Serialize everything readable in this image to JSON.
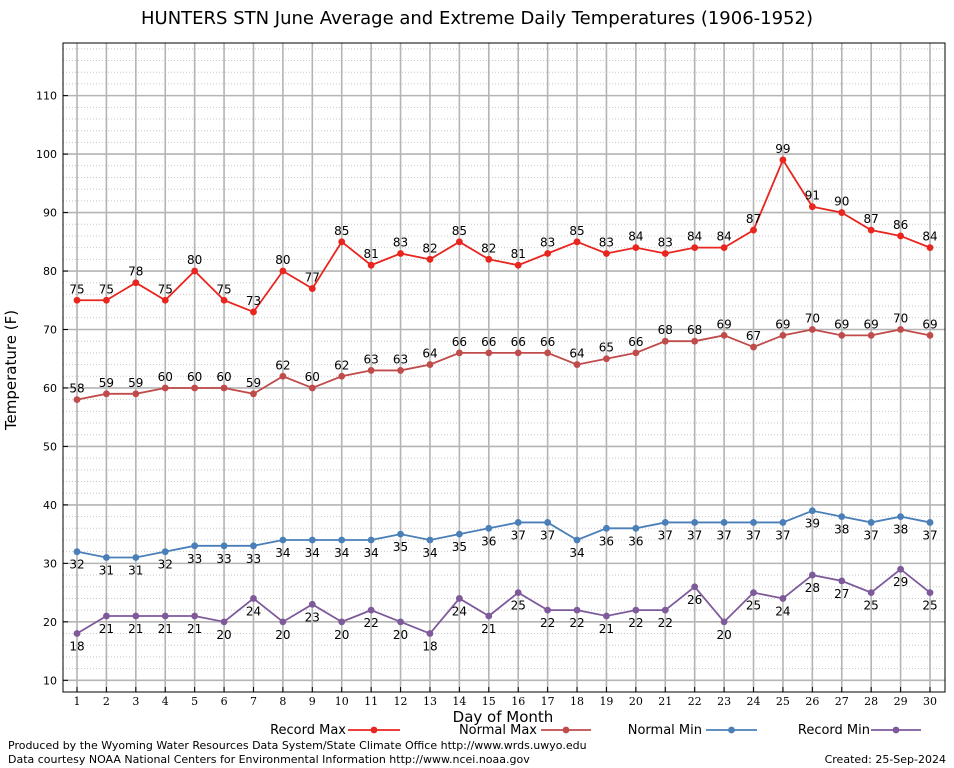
{
  "chart_data": {
    "type": "line",
    "title": "HUNTERS STN June Average and Extreme Daily Temperatures (1906-1952)",
    "xlabel": "Day of Month",
    "ylabel": "Temperature (F)",
    "x": [
      1,
      2,
      3,
      4,
      5,
      6,
      7,
      8,
      9,
      10,
      11,
      12,
      13,
      14,
      15,
      16,
      17,
      18,
      19,
      20,
      21,
      22,
      23,
      24,
      25,
      26,
      27,
      28,
      29,
      30
    ],
    "yticks": [
      10,
      20,
      30,
      40,
      50,
      60,
      70,
      80,
      90,
      100,
      110
    ],
    "ylim": [
      8,
      119
    ],
    "grid": true,
    "legend_position": "bottom",
    "series": [
      {
        "name": "Record Max",
        "color": "#e8251e",
        "label_pos": "above",
        "values": [
          75,
          75,
          78,
          75,
          80,
          75,
          73,
          80,
          77,
          85,
          81,
          83,
          82,
          85,
          82,
          81,
          83,
          85,
          83,
          84,
          83,
          84,
          84,
          87,
          99,
          91,
          90,
          87,
          86,
          84
        ]
      },
      {
        "name": "Normal Max",
        "color": "#c04b4b",
        "label_pos": "above",
        "values": [
          58,
          59,
          59,
          60,
          60,
          60,
          59,
          62,
          60,
          62,
          63,
          63,
          64,
          66,
          66,
          66,
          66,
          64,
          65,
          66,
          68,
          68,
          69,
          67,
          69,
          70,
          69,
          69,
          70,
          69
        ]
      },
      {
        "name": "Normal Min",
        "color": "#4a7fb8",
        "label_pos": "below",
        "values": [
          32,
          31,
          31,
          32,
          33,
          33,
          33,
          34,
          34,
          34,
          34,
          35,
          34,
          35,
          36,
          37,
          37,
          34,
          36,
          36,
          37,
          37,
          37,
          37,
          37,
          39,
          38,
          37,
          38,
          37
        ]
      },
      {
        "name": "Record Min",
        "color": "#7e5a9b",
        "label_pos": "below",
        "values": [
          18,
          21,
          21,
          21,
          21,
          20,
          24,
          20,
          23,
          20,
          22,
          20,
          18,
          24,
          21,
          25,
          22,
          22,
          21,
          22,
          22,
          26,
          20,
          25,
          24,
          28,
          27,
          25,
          29,
          25
        ]
      }
    ]
  },
  "footer": {
    "line1": "Produced by the Wyoming Water Resources Data System/State Climate Office http://www.wrds.uwyo.edu",
    "line2": "Data courtesy NOAA National Centers for Environmental Information http://www.ncei.noaa.gov",
    "created": "Created:  25-Sep-2024"
  }
}
